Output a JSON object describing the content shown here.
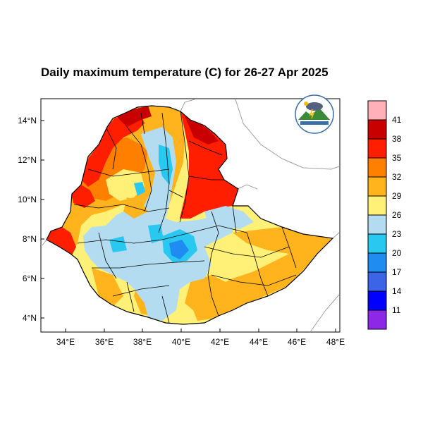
{
  "title": "Daily maximum temperature (C) for 26-27 Apr 2025",
  "map": {
    "lon_ticks": [
      "34°E",
      "36°E",
      "38°E",
      "40°E",
      "42°E",
      "44°E",
      "46°E",
      "48°E"
    ],
    "lat_ticks": [
      "14°N",
      "12°N",
      "10°N",
      "8°N",
      "6°N",
      "4°N"
    ],
    "lon_range": [
      33,
      48.2
    ],
    "lat_range": [
      3.2,
      15
    ]
  },
  "colorbar": {
    "labels": [
      "41",
      "38",
      "35",
      "32",
      "29",
      "26",
      "23",
      "20",
      "17",
      "14",
      "11"
    ],
    "colors": [
      "#ffb0b8",
      "#c80000",
      "#ff1e00",
      "#ff8000",
      "#ffb41e",
      "#fff078",
      "#b4dcf0",
      "#28c8f0",
      "#1e8cf0",
      "#3c64e6",
      "#0000ff",
      "#8c28e6"
    ]
  },
  "logo": {
    "name": "institute-logo"
  }
}
